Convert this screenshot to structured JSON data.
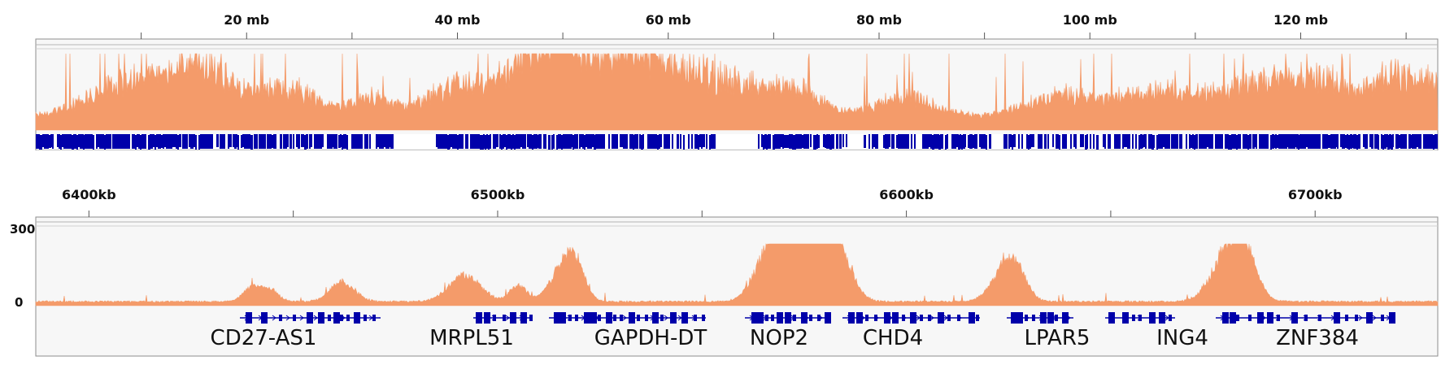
{
  "genome_overview": {
    "tick_labels": [
      "20 mb",
      "40 mb",
      "60 mb",
      "80 mb",
      "100 mb",
      "120 mb"
    ],
    "tick_positions_mb": [
      20,
      40,
      60,
      80,
      100,
      120
    ],
    "domain_mb": [
      0,
      133
    ],
    "track_color": "#F49B6A",
    "gene_color": "#0000AA"
  },
  "region_view": {
    "tick_labels": [
      "6400kb",
      "6500kb",
      "6600kb",
      "6700kb"
    ],
    "tick_positions_kb": [
      6400,
      6500,
      6600,
      6700
    ],
    "domain_kb": [
      6387,
      6730
    ],
    "y_max_label": "300",
    "y_min_label": "0",
    "track_color": "#F49B6A",
    "gene_color": "#0000AA",
    "genes": [
      {
        "name": "CD27-AS1"
      },
      {
        "name": "MRPL51"
      },
      {
        "name": "GAPDH-DT"
      },
      {
        "name": "NOP2"
      },
      {
        "name": "CHD4"
      },
      {
        "name": "LPAR5"
      },
      {
        "name": "ING4"
      },
      {
        "name": "ZNF384"
      }
    ]
  },
  "colors": {
    "panel_bg": "#F7F7F7",
    "border": "#8C8C8C",
    "signal": "#F49B6A",
    "genes": "#0000AA"
  }
}
